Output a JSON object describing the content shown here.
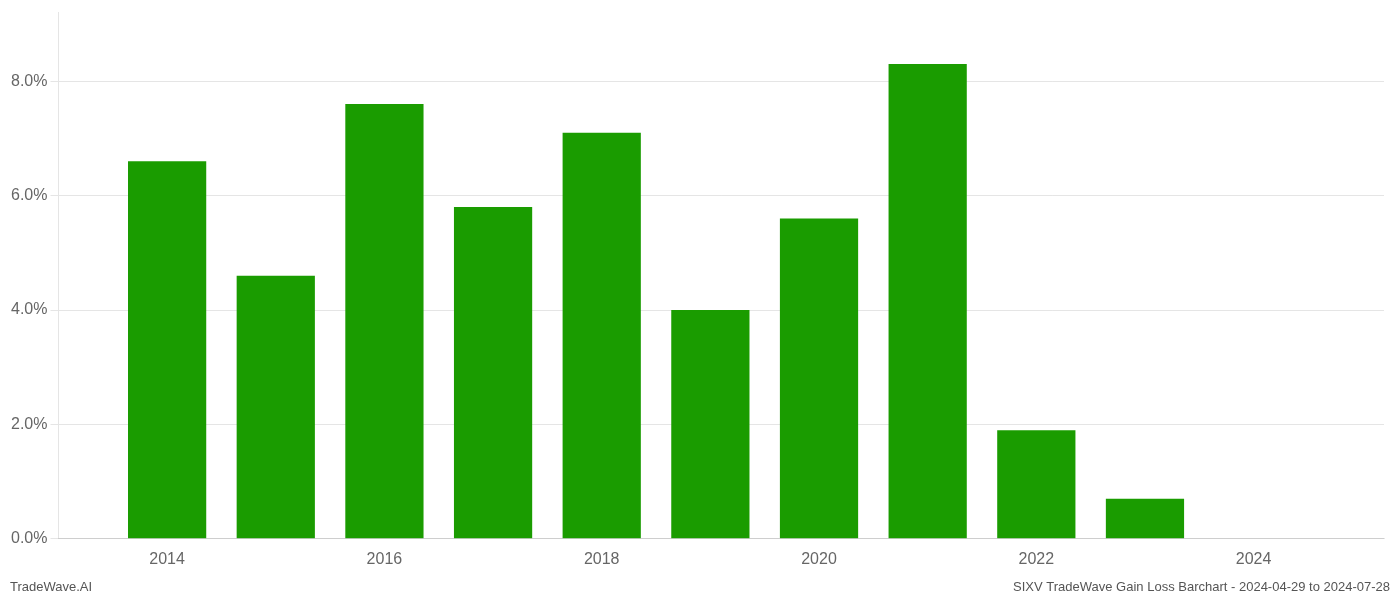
{
  "chart_data": {
    "type": "bar",
    "x": [
      2014,
      2015,
      2016,
      2017,
      2018,
      2019,
      2020,
      2021,
      2022,
      2023,
      2024
    ],
    "values": [
      0.066,
      0.046,
      0.076,
      0.058,
      0.071,
      0.04,
      0.056,
      0.083,
      0.019,
      0.007,
      0.0
    ],
    "color": "#1a9c00",
    "xlim": [
      2013.0,
      2025.2
    ],
    "xticks": [
      2014,
      2016,
      2018,
      2020,
      2022,
      2024
    ],
    "ylim": [
      0,
      0.092
    ],
    "yticks": [
      {
        "value": 0.0,
        "label": "0.0%"
      },
      {
        "value": 0.02,
        "label": "2.0%"
      },
      {
        "value": 0.04,
        "label": "4.0%"
      },
      {
        "value": 0.06,
        "label": "6.0%"
      },
      {
        "value": 0.08,
        "label": "8.0%"
      }
    ],
    "grid": true,
    "annotations": [
      "TradeWave.AI",
      "SIXV TradeWave Gain Loss Barchart - 2024-04-29 to 2024-07-28"
    ]
  }
}
